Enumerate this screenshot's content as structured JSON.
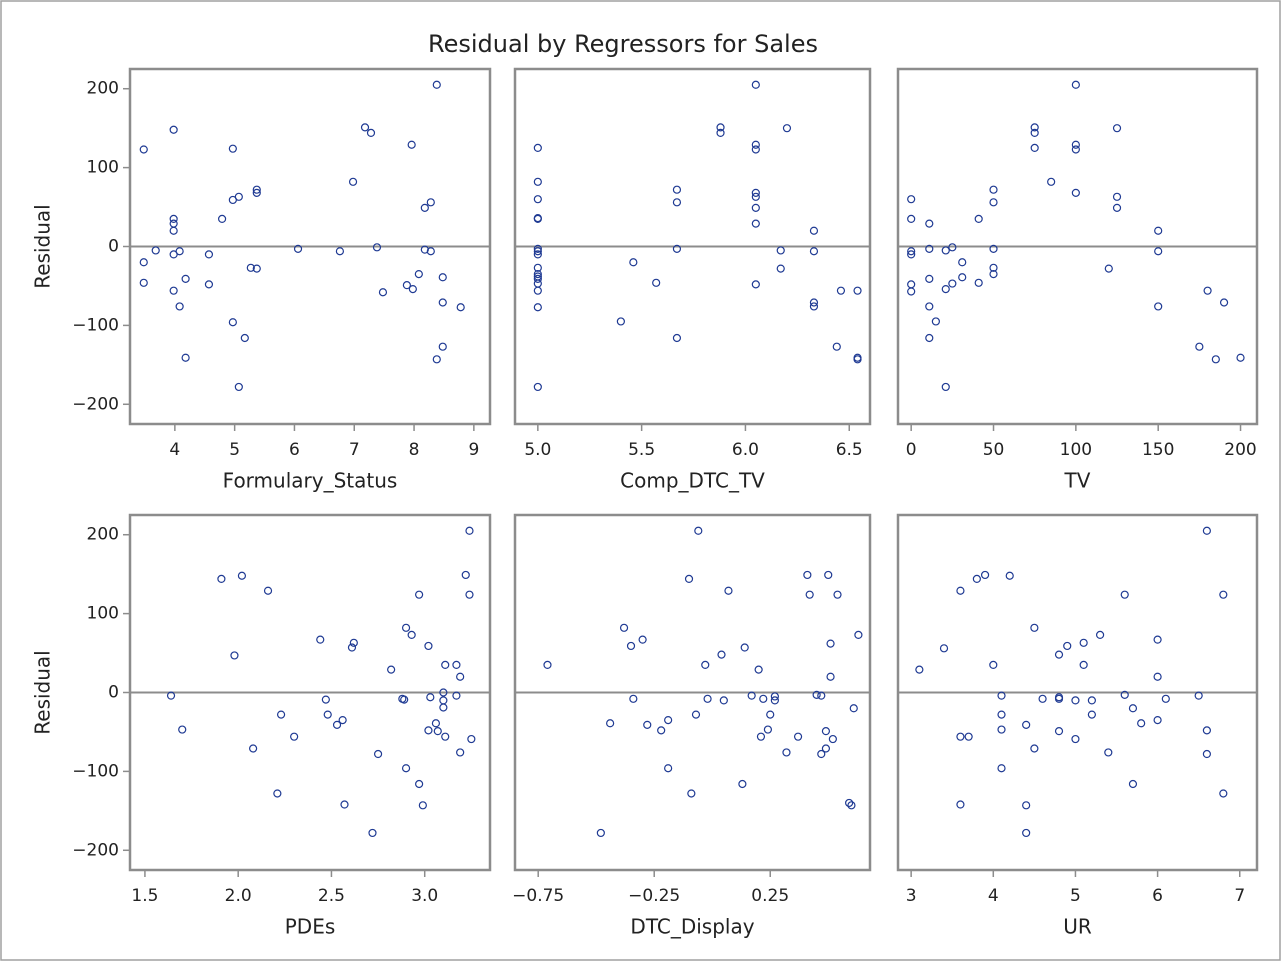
{
  "title": "Residual by Regressors for Sales",
  "chart_data": [
    {
      "type": "scatter",
      "x_label": "Formulary_Status",
      "y_label": "Residual",
      "color": "#1f3a93",
      "reference_line": 0,
      "xlim": [
        3.25,
        9.27
      ],
      "ylim": [
        -225,
        225
      ],
      "xticks": [
        4,
        5,
        6,
        7,
        8,
        9
      ],
      "yticks": [
        {
          "value": -200,
          "label": "−200"
        },
        {
          "value": -100,
          "label": "−100"
        },
        0,
        100,
        200
      ],
      "x": [
        3.48,
        3.48,
        3.48,
        3.68,
        3.98,
        3.98,
        3.98,
        3.98,
        3.98,
        3.98,
        4.08,
        4.08,
        4.18,
        4.18,
        4.57,
        4.57,
        4.79,
        4.97,
        4.97,
        4.97,
        5.07,
        5.07,
        5.17,
        5.27,
        5.37,
        5.37,
        5.37,
        6.06,
        6.76,
        6.98,
        7.18,
        7.28,
        7.38,
        7.48,
        7.88,
        7.96,
        7.98,
        8.08,
        8.18,
        8.18,
        8.28,
        8.28,
        8.38,
        8.38,
        8.48,
        8.48,
        8.48,
        8.78
      ],
      "y": [
        123,
        -20,
        -46,
        -5,
        148,
        35,
        29,
        20,
        -10,
        -56,
        -6,
        -76,
        -41,
        -141,
        -10,
        -48,
        35,
        124,
        59,
        -96,
        63,
        -178,
        -116,
        -27,
        -28,
        72,
        68,
        -3,
        -6,
        82,
        151,
        144,
        -1,
        -58,
        -49,
        129,
        -54,
        -35,
        49,
        -4,
        56,
        -6,
        205,
        -143,
        -39,
        -71,
        -127,
        -77
      ]
    },
    {
      "type": "scatter",
      "x_label": "Comp_DTC_TV",
      "color": "#1f3a93",
      "reference_line": 0,
      "xlim": [
        4.89,
        6.6
      ],
      "ylim": [
        -225,
        225
      ],
      "xticks": [
        {
          "value": 5,
          "label": "5.0"
        },
        5.5,
        {
          "value": 6,
          "label": "6.0"
        },
        6.5
      ],
      "x": [
        5,
        5,
        5,
        5,
        5,
        5,
        5,
        5,
        5,
        5,
        5,
        5,
        5,
        5,
        5,
        5,
        5.4,
        5.46,
        5.57,
        5.67,
        5.67,
        5.67,
        5.67,
        5.88,
        5.88,
        6.05,
        6.05,
        6.05,
        6.05,
        6.05,
        6.05,
        6.05,
        6.05,
        6.17,
        6.17,
        6.2,
        6.33,
        6.33,
        6.33,
        6.33,
        6.44,
        6.46,
        6.54,
        6.54,
        6.54
      ],
      "y": [
        125,
        82,
        60,
        35,
        36,
        -3,
        -6,
        -10,
        -27,
        -35,
        -38,
        -41,
        -47,
        -56,
        -77,
        -178,
        -95,
        -20,
        -46,
        72,
        56,
        -3,
        -116,
        151,
        144,
        205,
        129,
        123,
        68,
        63,
        49,
        29,
        -48,
        -5,
        -28,
        150,
        20,
        -6,
        -71,
        -76,
        -127,
        -56,
        -56,
        -141,
        -143
      ]
    },
    {
      "type": "scatter",
      "x_label": "TV",
      "color": "#1f3a93",
      "reference_line": 0,
      "xlim": [
        -8,
        210
      ],
      "ylim": [
        -225,
        225
      ],
      "xticks": [
        0,
        50,
        100,
        150,
        200
      ],
      "x": [
        0,
        0,
        0,
        0,
        0,
        0,
        11,
        11,
        11,
        11,
        11,
        15,
        21,
        21,
        21,
        25,
        25,
        31,
        31,
        41,
        41,
        50,
        50,
        50,
        50,
        50,
        75,
        75,
        75,
        85,
        100,
        100,
        100,
        100,
        120,
        125,
        125,
        125,
        150,
        150,
        150,
        175,
        180,
        185,
        190,
        200
      ],
      "y": [
        60,
        35,
        -6,
        -10,
        -48,
        -57,
        29,
        -3,
        -41,
        -76,
        -116,
        -95,
        -5,
        -54,
        -178,
        -1,
        -47,
        -20,
        -39,
        35,
        -46,
        72,
        56,
        -3,
        -27,
        -35,
        151,
        144,
        125,
        82,
        205,
        129,
        123,
        68,
        -28,
        150,
        63,
        49,
        20,
        -6,
        -76,
        -127,
        -56,
        -143,
        -71,
        -141
      ]
    },
    {
      "type": "scatter",
      "x_label": "PDEs",
      "y_label": "Residual",
      "color": "#1f3a93",
      "reference_line": 0,
      "xlim": [
        1.42,
        3.35
      ],
      "ylim": [
        -225,
        225
      ],
      "xticks": [
        1.5,
        {
          "value": 2,
          "label": "2.0"
        },
        2.5,
        {
          "value": 3,
          "label": "3.0"
        }
      ],
      "yticks": [
        {
          "value": -200,
          "label": "−200"
        },
        {
          "value": -100,
          "label": "−100"
        },
        0,
        100,
        200
      ],
      "x": [
        1.64,
        1.7,
        1.91,
        1.98,
        2.02,
        2.08,
        2.16,
        2.21,
        2.23,
        2.3,
        2.44,
        2.47,
        2.48,
        2.53,
        2.56,
        2.57,
        2.61,
        2.62,
        2.75,
        2.72,
        2.82,
        2.88,
        2.89,
        2.9,
        2.9,
        2.93,
        2.97,
        2.97,
        2.99,
        3.02,
        3.02,
        3.03,
        3.06,
        3.07,
        3.1,
        3.1,
        3.1,
        3.11,
        3.11,
        3.17,
        3.17,
        3.19,
        3.19,
        3.22,
        3.24,
        3.24,
        3.25
      ],
      "y": [
        -4,
        -47,
        144,
        47,
        148,
        -71,
        129,
        -128,
        -28,
        -56,
        67,
        -9,
        -28,
        -41,
        -35,
        -142,
        57,
        63,
        -78,
        -178,
        29,
        -8,
        -9,
        82,
        -96,
        73,
        124,
        -116,
        -143,
        59,
        -48,
        -6,
        -39,
        -49,
        0,
        -10,
        -19,
        35,
        -56,
        35,
        -4,
        20,
        -76,
        149,
        124,
        205,
        -59
      ]
    },
    {
      "type": "scatter",
      "x_label": "DTC_Display",
      "color": "#1f3a93",
      "reference_line": 0,
      "xlim": [
        -0.85,
        0.68
      ],
      "ylim": [
        -225,
        225
      ],
      "xticks": [
        {
          "value": -0.75,
          "label": "−0.75"
        },
        {
          "value": -0.25,
          "label": "−0.25"
        },
        0.25
      ],
      "x": [
        -0.71,
        -0.48,
        -0.44,
        -0.38,
        -0.35,
        -0.34,
        -0.3,
        -0.28,
        -0.22,
        -0.19,
        -0.19,
        -0.1,
        -0.09,
        -0.07,
        -0.06,
        -0.03,
        -0.02,
        0.04,
        0.05,
        0.07,
        0.13,
        0.14,
        0.17,
        0.2,
        0.21,
        0.22,
        0.24,
        0.25,
        0.27,
        0.27,
        0.32,
        0.37,
        0.41,
        0.42,
        0.45,
        0.47,
        0.47,
        0.49,
        0.49,
        0.5,
        0.51,
        0.51,
        0.52,
        0.54,
        0.59,
        0.6,
        0.61,
        0.63
      ],
      "y": [
        35,
        -178,
        -39,
        82,
        59,
        -8,
        67,
        -41,
        -48,
        -35,
        -96,
        144,
        -128,
        -28,
        205,
        35,
        -8,
        48,
        -10,
        129,
        -116,
        57,
        -4,
        29,
        -56,
        -8,
        -47,
        -28,
        -5,
        -10,
        -76,
        -56,
        149,
        124,
        -3,
        -4,
        -78,
        -49,
        -71,
        149,
        62,
        20,
        -59,
        124,
        -140,
        -143,
        -20,
        73
      ]
    },
    {
      "type": "scatter",
      "x_label": "UR",
      "color": "#1f3a93",
      "reference_line": 0,
      "xlim": [
        2.84,
        7.21
      ],
      "ylim": [
        -225,
        225
      ],
      "xticks": [
        3,
        4,
        5,
        6,
        7
      ],
      "x": [
        3.1,
        3.4,
        3.6,
        3.6,
        3.6,
        3.7,
        3.8,
        3.9,
        4,
        4.1,
        4.1,
        4.1,
        4.1,
        4.2,
        4.4,
        4.4,
        4.4,
        4.5,
        4.5,
        4.6,
        4.8,
        4.8,
        4.8,
        4.8,
        4.9,
        5,
        5,
        5.1,
        5.1,
        5.2,
        5.2,
        5.3,
        5.4,
        5.6,
        5.6,
        5.7,
        5.7,
        5.8,
        6,
        6,
        6,
        6.1,
        6.5,
        6.6,
        6.6,
        6.6,
        6.8,
        6.8
      ],
      "y": [
        29,
        56,
        129,
        -56,
        -142,
        -56,
        144,
        149,
        35,
        -4,
        -28,
        -47,
        -96,
        148,
        -41,
        -143,
        -178,
        82,
        -71,
        -8,
        48,
        -8,
        -6,
        -49,
        59,
        -10,
        -59,
        63,
        35,
        -10,
        -28,
        73,
        -76,
        124,
        -3,
        -20,
        -116,
        -39,
        67,
        20,
        -35,
        -8,
        -4,
        205,
        -48,
        -78,
        124,
        -128
      ]
    }
  ]
}
